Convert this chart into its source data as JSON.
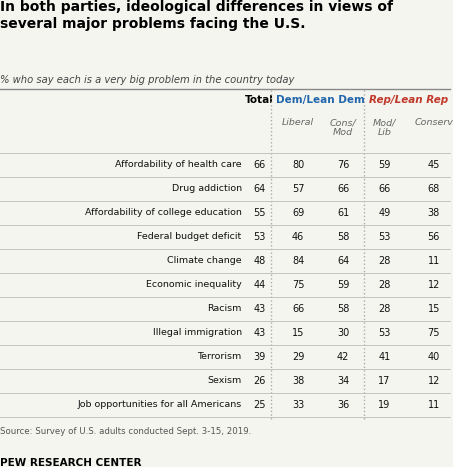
{
  "title": "In both parties, ideological differences in views of\nseveral major problems facing the U.S.",
  "subtitle": "% who say each is a very big problem in the country today",
  "source": "Source: Survey of U.S. adults conducted Sept. 3-15, 2019.",
  "footer": "PEW RESEARCH CENTER",
  "col_headers": {
    "total": "Total",
    "dem": "Dem/Lean Dem",
    "rep": "Rep/Lean Rep"
  },
  "rows": [
    {
      "label": "Affordability of health care",
      "total": 66,
      "lib": 80,
      "cons_mod": 76,
      "mod_lib": 59,
      "conserv": 45
    },
    {
      "label": "Drug addiction",
      "total": 64,
      "lib": 57,
      "cons_mod": 66,
      "mod_lib": 66,
      "conserv": 68
    },
    {
      "label": "Affordability of college education",
      "total": 55,
      "lib": 69,
      "cons_mod": 61,
      "mod_lib": 49,
      "conserv": 38
    },
    {
      "label": "Federal budget deficit",
      "total": 53,
      "lib": 46,
      "cons_mod": 58,
      "mod_lib": 53,
      "conserv": 56
    },
    {
      "label": "Climate change",
      "total": 48,
      "lib": 84,
      "cons_mod": 64,
      "mod_lib": 28,
      "conserv": 11
    },
    {
      "label": "Economic inequality",
      "total": 44,
      "lib": 75,
      "cons_mod": 59,
      "mod_lib": 28,
      "conserv": 12
    },
    {
      "label": "Racism",
      "total": 43,
      "lib": 66,
      "cons_mod": 58,
      "mod_lib": 28,
      "conserv": 15
    },
    {
      "label": "Illegal immigration",
      "total": 43,
      "lib": 15,
      "cons_mod": 30,
      "mod_lib": 53,
      "conserv": 75
    },
    {
      "label": "Terrorism",
      "total": 39,
      "lib": 29,
      "cons_mod": 42,
      "mod_lib": 41,
      "conserv": 40
    },
    {
      "label": "Sexism",
      "total": 26,
      "lib": 38,
      "cons_mod": 34,
      "mod_lib": 17,
      "conserv": 12
    },
    {
      "label": "Job opportunities for all Americans",
      "total": 25,
      "lib": 33,
      "cons_mod": 36,
      "mod_lib": 19,
      "conserv": 11
    }
  ],
  "dem_color": "#2166ac",
  "rep_color": "#c0392b",
  "title_color": "#000000",
  "bg_color": "#f5f5f0",
  "row_divider_color": "#bbbbbb",
  "col_divider_color": "#999999"
}
